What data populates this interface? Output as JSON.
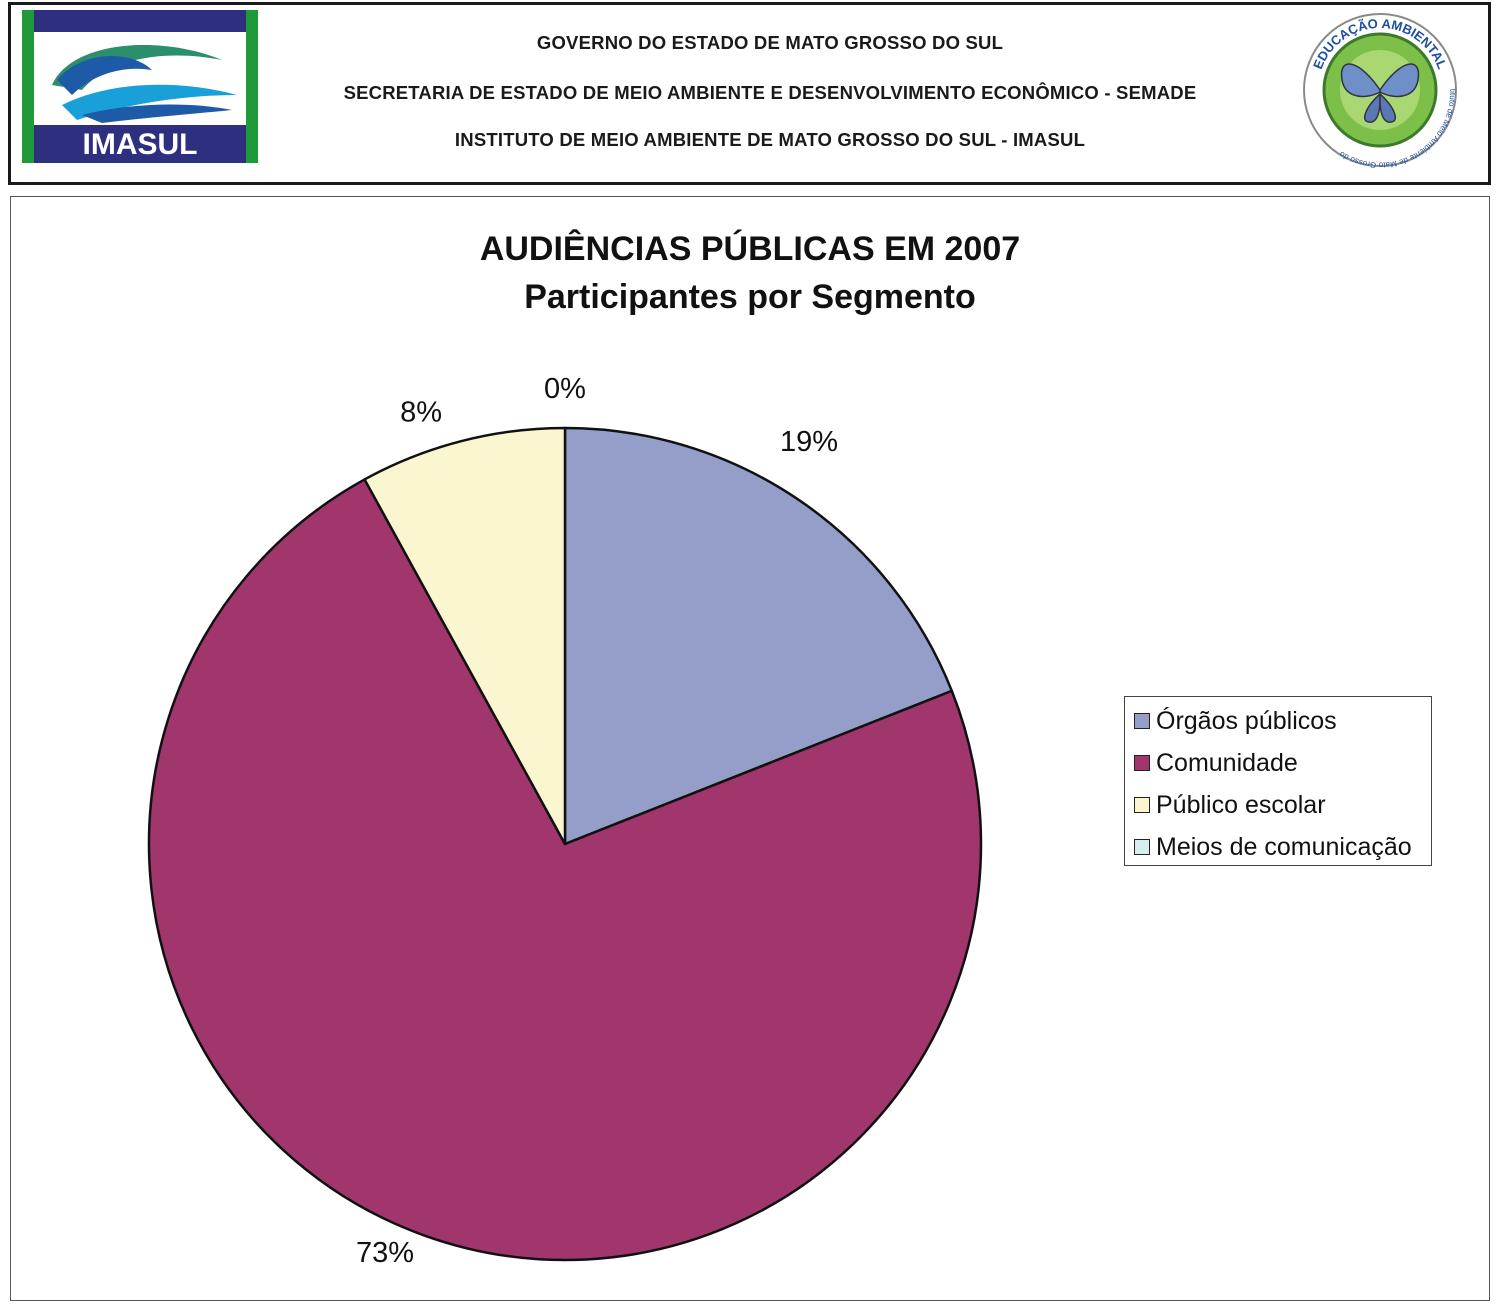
{
  "header": {
    "line1": "GOVERNO DO ESTADO DE MATO GROSSO DO SUL",
    "line2": "SECRETARIA DE ESTADO DE MEIO AMBIENTE E DESENVOLVIMENTO ECONÔMICO - SEMADE",
    "line3": "INSTITUTO DE MEIO AMBIENTE DE MATO GROSSO DO SUL - IMASUL",
    "logo_left_text": "IMASUL",
    "logo_right_top_text": "EDUCAÇÃO AMBIENTAL",
    "logo_right_bottom_text": "Instituto de Meio Ambiente de Mato Grosso do Sul"
  },
  "chart_data": {
    "type": "pie",
    "title": "AUDIÊNCIAS PÚBLICAS EM 2007",
    "subtitle": "Participantes por Segmento",
    "legend_position": "right",
    "slices": [
      {
        "name": "Órgãos públicos",
        "value": 19,
        "label": "19%",
        "color": "#959ec9"
      },
      {
        "name": "Comunidade",
        "value": 73,
        "label": "73%",
        "color": "#a0366b"
      },
      {
        "name": "Público escolar",
        "value": 8,
        "label": "8%",
        "color": "#faf7d0"
      },
      {
        "name": "Meios de comunicação",
        "value": 0,
        "label": "0%",
        "color": "#d6eef0"
      }
    ]
  }
}
